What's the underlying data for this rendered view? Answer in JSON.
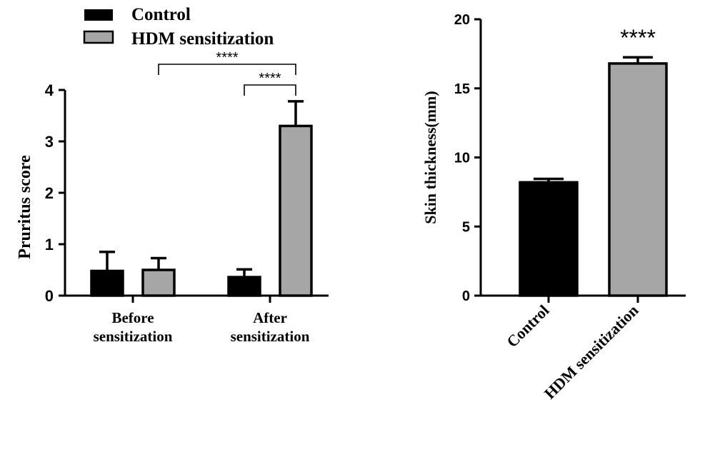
{
  "legend": {
    "items": [
      {
        "label": "Control",
        "color": "#000000"
      },
      {
        "label": "HDM sensitization",
        "color": "#a6a6a6"
      }
    ]
  },
  "chart_data": [
    {
      "type": "bar",
      "ylabel": "Pruritus score",
      "ylim": [
        0,
        4
      ],
      "yticks": [
        "0",
        "1",
        "2",
        "3",
        "4"
      ],
      "categories": [
        [
          "Before",
          "sensitization"
        ],
        [
          "After",
          "sensitization"
        ]
      ],
      "series": [
        {
          "name": "Control",
          "color": "#000000",
          "values": [
            0.48,
            0.36
          ],
          "errors": [
            0.37,
            0.15
          ]
        },
        {
          "name": "HDM sensitization",
          "color": "#a6a6a6",
          "values": [
            0.5,
            3.3
          ],
          "errors": [
            0.23,
            0.48
          ]
        }
      ],
      "annotations": [
        {
          "text": "****",
          "from": [
            0,
            1
          ],
          "to": [
            1,
            1
          ]
        },
        {
          "text": "****",
          "from": [
            1,
            0
          ],
          "to": [
            1,
            1
          ]
        }
      ],
      "grid": false,
      "legend_position": "top-left"
    },
    {
      "type": "bar",
      "ylabel": "Skin thickness(mm)",
      "ylim": [
        0,
        20
      ],
      "yticks": [
        "0",
        "5",
        "10",
        "15",
        "20"
      ],
      "categories": [
        "Control",
        "HDM sensitization"
      ],
      "values": [
        8.2,
        16.8
      ],
      "errors": [
        0.25,
        0.45
      ],
      "colors": [
        "#000000",
        "#a6a6a6"
      ],
      "annotations": [
        {
          "text": "****",
          "bar": 1
        }
      ],
      "grid": false
    }
  ]
}
